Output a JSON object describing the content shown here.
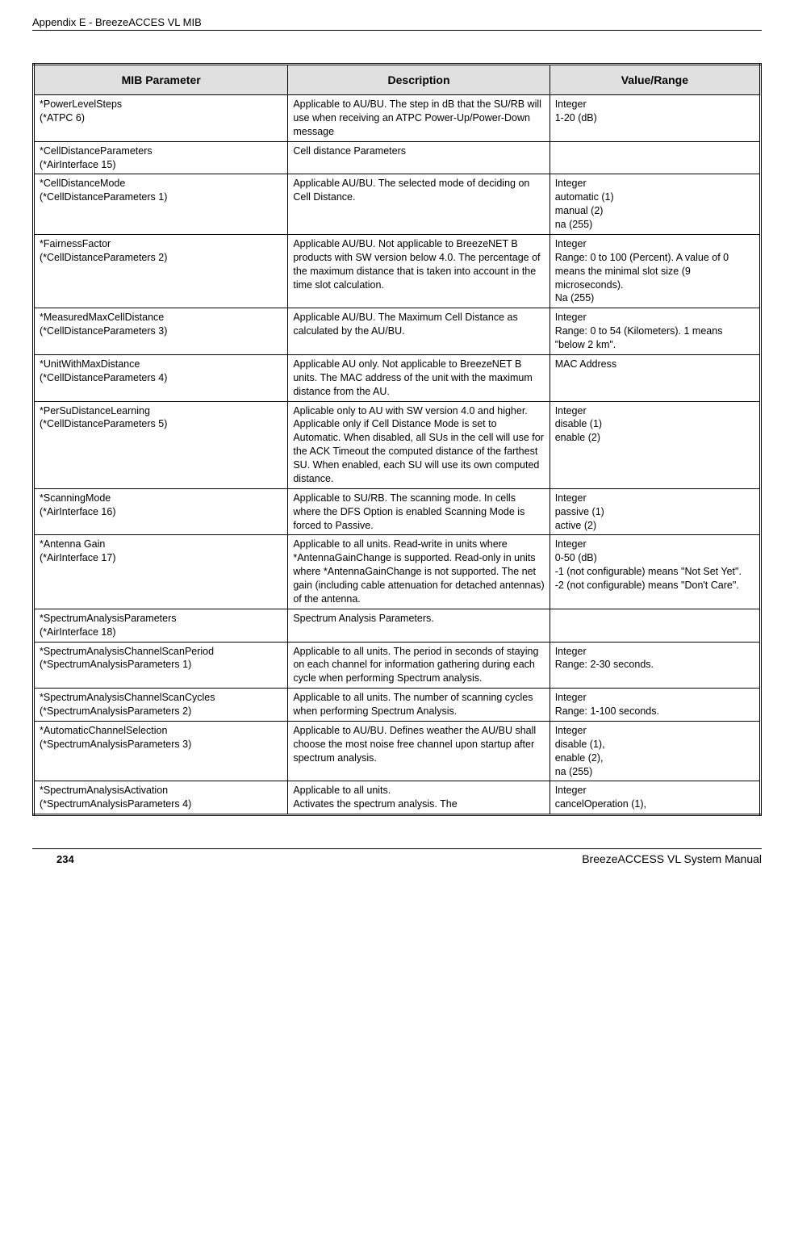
{
  "header": "Appendix E - BreezeACCES VL MIB",
  "table": {
    "headers": [
      "MIB Parameter",
      "Description",
      "Value/Range"
    ],
    "rows": [
      {
        "param": "*PowerLevelSteps\n(*ATPC 6)",
        "desc": "Applicable to AU/BU. The step in dB that the SU/RB will use when receiving an ATPC Power-Up/Power-Down message",
        "value": "Integer\n1-20 (dB)"
      },
      {
        "param": "*CellDistanceParameters\n(*AirInterface 15)",
        "desc": "Cell distance Parameters",
        "value": ""
      },
      {
        "param": "*CellDistanceMode\n(*CellDistanceParameters 1)",
        "desc": "Applicable AU/BU. The selected mode of deciding on Cell Distance.",
        "value": "Integer\nautomatic (1)\nmanual (2)\nna (255)"
      },
      {
        "param": "*FairnessFactor\n(*CellDistanceParameters 2)",
        "desc": "Applicable AU/BU. Not applicable to BreezeNET B products with SW version below 4.0. The percentage of the maximum distance that is taken into account in the time slot calculation.",
        "value": "Integer\nRange: 0 to 100 (Percent). A value of 0 means the minimal slot size (9 microseconds).\nNa (255)"
      },
      {
        "param": "*MeasuredMaxCellDistance\n(*CellDistanceParameters 3)",
        "desc": "Applicable AU/BU. The Maximum Cell Distance as calculated by the AU/BU.",
        "value": "Integer\nRange: 0 to 54 (Kilometers). 1 means \"below 2 km\"."
      },
      {
        "param": "*UnitWithMaxDistance\n(*CellDistanceParameters 4)",
        "desc": "Applicable AU only. Not applicable to BreezeNET B units. The MAC address of the unit with the maximum distance from the AU.",
        "value": "MAC Address"
      },
      {
        "param": "*PerSuDistanceLearning\n(*CellDistanceParameters 5)",
        "desc": "Aplicable only to AU with SW version 4.0 and higher. Applicable only if Cell Distance Mode is set to Automatic. When disabled, all SUs in the cell will use for the ACK Timeout the computed distance of the farthest SU. When enabled, each SU will use its own computed distance.",
        "value": "Integer\ndisable (1)\nenable (2)"
      },
      {
        "param": "*ScanningMode\n(*AirInterface 16)",
        "desc": "Applicable to SU/RB. The scanning mode. In cells where the DFS Option is enabled Scanning Mode is forced to Passive.",
        "value": "Integer\npassive (1)\nactive (2)"
      },
      {
        "param": "*Antenna Gain\n(*AirInterface 17)",
        "desc": "Applicable to all units. Read-write in units where *AntennaGainChange is supported. Read-only in units where *AntennaGainChange is not supported. The net gain (including cable attenuation for detached antennas) of the antenna.",
        "value": "Integer\n0-50 (dB)\n-1 (not configurable) means \"Not Set Yet\".\n-2 (not configurable) means \"Don't Care\"."
      },
      {
        "param": "*SpectrumAnalysisParameters\n(*AirInterface 18)",
        "desc": "Spectrum Analysis Parameters.",
        "value": ""
      },
      {
        "param": "*SpectrumAnalysisChannelScanPeriod\n(*SpectrumAnalysisParameters 1)",
        "desc": "Applicable to all units. The period in seconds of staying on each channel for information gathering during each cycle when performing Spectrum analysis.",
        "value": "Integer\nRange: 2-30 seconds."
      },
      {
        "param": "*SpectrumAnalysisChannelScanCycles\n(*SpectrumAnalysisParameters 2)",
        "desc": "Applicable to all units. The number of scanning cycles when performing Spectrum Analysis.",
        "value": "Integer\nRange: 1-100 seconds."
      },
      {
        "param": "*AutomaticChannelSelection\n(*SpectrumAnalysisParameters 3)",
        "desc": "Applicable to AU/BU. Defines weather the AU/BU shall choose the most noise free channel upon startup after spectrum analysis.",
        "value": "Integer\ndisable (1),\nenable (2),\nna (255)"
      },
      {
        "param": "*SpectrumAnalysisActivation\n(*SpectrumAnalysisParameters 4)",
        "desc": "Applicable to all units.\nActivates the spectrum analysis. The",
        "value": "Integer\ncancelOperation (1),"
      }
    ]
  },
  "footer": {
    "pageNum": "234",
    "title": "BreezeACCESS VL System Manual"
  }
}
